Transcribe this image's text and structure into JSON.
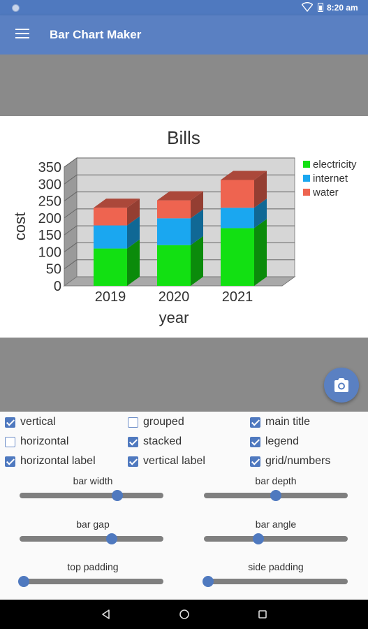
{
  "status_bar": {
    "time": "8:20 am"
  },
  "app_bar": {
    "title": "Bar Chart Maker"
  },
  "chart_data": {
    "type": "bar",
    "stacked": true,
    "three_d": true,
    "title": "Bills",
    "xlabel": "year",
    "ylabel": "cost",
    "ylim": [
      0,
      350
    ],
    "yticks": [
      "350",
      "300",
      "250",
      "200",
      "150",
      "100",
      "50",
      "0"
    ],
    "categories": [
      "2019",
      "2020",
      "2021"
    ],
    "series": [
      {
        "name": "electricity",
        "color": "#12e012",
        "values": [
          110,
          120,
          170
        ]
      },
      {
        "name": "internet",
        "color": "#1aa7f0",
        "values": [
          68,
          79,
          60
        ]
      },
      {
        "name": "water",
        "color": "#ee6450",
        "values": [
          52,
          53,
          82
        ]
      }
    ],
    "legend_position": "top-right",
    "grid": true
  },
  "options": [
    {
      "label": "vertical",
      "checked": true
    },
    {
      "label": "grouped",
      "checked": false
    },
    {
      "label": "main title",
      "checked": true
    },
    {
      "label": "horizontal",
      "checked": false
    },
    {
      "label": "stacked",
      "checked": true
    },
    {
      "label": "legend",
      "checked": true
    },
    {
      "label": "horizontal label",
      "checked": true
    },
    {
      "label": "vertical label",
      "checked": true
    },
    {
      "label": "grid/numbers",
      "checked": true
    }
  ],
  "sliders": [
    {
      "label": "bar width",
      "value": 0.68
    },
    {
      "label": "bar depth",
      "value": 0.5
    },
    {
      "label": "bar gap",
      "value": 0.64
    },
    {
      "label": "bar angle",
      "value": 0.38
    },
    {
      "label": "top padding",
      "value": 0.03
    },
    {
      "label": "side padding",
      "value": 0.03
    }
  ],
  "icons": {
    "menu": "hamburger-icon",
    "camera": "camera-icon",
    "back": "back-icon",
    "home": "home-icon",
    "recents": "recents-icon"
  }
}
